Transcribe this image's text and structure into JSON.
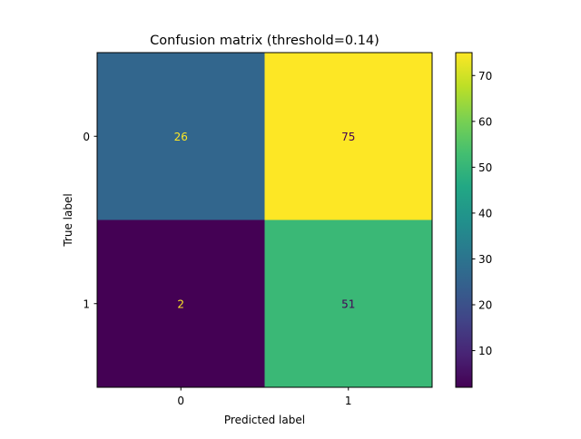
{
  "chart_data": {
    "type": "heatmap",
    "title": "Confusion matrix (threshold=0.14)",
    "xlabel": "Predicted label",
    "ylabel": "True label",
    "x_tick_labels": [
      "0",
      "1"
    ],
    "y_tick_labels": [
      "0",
      "1"
    ],
    "values": [
      [
        26,
        75
      ],
      [
        2,
        51
      ]
    ],
    "colormap": "viridis",
    "color_range": [
      2,
      75
    ],
    "colorbar_ticks": [
      10,
      20,
      30,
      40,
      50,
      60,
      70
    ],
    "text_color_dark_cells": "#fde725",
    "text_color_light_cells": "#440154"
  }
}
